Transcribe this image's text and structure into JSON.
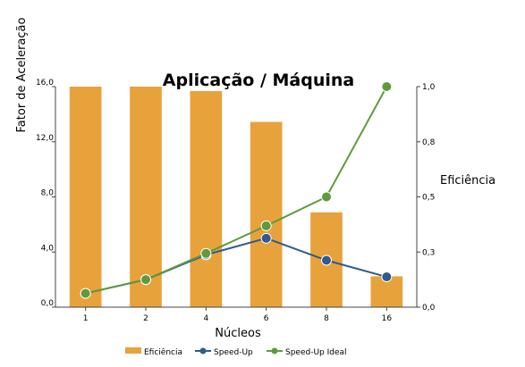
{
  "chart_data": {
    "type": "bar",
    "title": "Aplicação / Máquina",
    "xlabel": "Núcleos",
    "ylabel": "Fator de Aceleração",
    "y2label": "Eficiência",
    "categories": [
      "1",
      "2",
      "4",
      "6",
      "8",
      "16"
    ],
    "ylim": [
      0,
      16
    ],
    "y_ticks": [
      "0,0",
      "4,0",
      "8,0",
      "12,0",
      "16,0"
    ],
    "y2lim": [
      0,
      1
    ],
    "y2_ticks": [
      "0,0",
      "0,3",
      "0,5",
      "0,8",
      "1,0"
    ],
    "grid": false,
    "legend_position": "bottom",
    "series": [
      {
        "name": "Eficiência",
        "kind": "bar",
        "axis": "right",
        "color": "#e8a23c",
        "values": [
          1.0,
          1.0,
          0.98,
          0.84,
          0.43,
          0.14
        ]
      },
      {
        "name": "Speed-Up",
        "kind": "line",
        "axis": "left",
        "color": "#2f5b8f",
        "values": [
          1.0,
          2.0,
          3.8,
          5.0,
          3.4,
          2.2
        ]
      },
      {
        "name": "Speed-Up Ideal",
        "kind": "line",
        "axis": "left",
        "color": "#5f9a3e",
        "values": [
          1.0,
          2.0,
          3.9,
          5.9,
          8.0,
          16.0
        ]
      }
    ]
  }
}
